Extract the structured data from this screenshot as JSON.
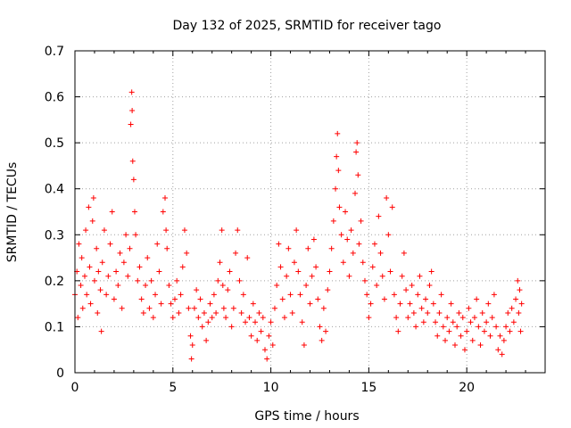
{
  "chart_data": {
    "type": "scatter",
    "title": "Day 132 of 2025, SRMTID for receiver tago",
    "xlabel": "GPS time / hours",
    "ylabel": "SRMTID / TECUs",
    "xlim": [
      0,
      24
    ],
    "ylim": [
      0,
      0.7
    ],
    "xticks": [
      0,
      5,
      10,
      15,
      20
    ],
    "xtick_labels": [
      "0",
      "5",
      "10",
      "15",
      "20"
    ],
    "yticks": [
      0,
      0.1,
      0.2,
      0.3,
      0.4,
      0.5,
      0.6,
      0.7
    ],
    "ytick_labels": [
      "0",
      "0.1",
      "0.2",
      "0.3",
      "0.4",
      "0.5",
      "0.6",
      "0.7"
    ],
    "grid": true,
    "marker": "+",
    "color": "#ff0000",
    "series": [
      {
        "name": "SRMTID",
        "points": [
          [
            0.0,
            0.17
          ],
          [
            0.1,
            0.22
          ],
          [
            0.15,
            0.12
          ],
          [
            0.2,
            0.28
          ],
          [
            0.3,
            0.19
          ],
          [
            0.35,
            0.25
          ],
          [
            0.4,
            0.14
          ],
          [
            0.5,
            0.21
          ],
          [
            0.55,
            0.31
          ],
          [
            0.6,
            0.17
          ],
          [
            0.7,
            0.36
          ],
          [
            0.75,
            0.23
          ],
          [
            0.8,
            0.15
          ],
          [
            0.9,
            0.33
          ],
          [
            0.95,
            0.38
          ],
          [
            1.0,
            0.2
          ],
          [
            1.1,
            0.27
          ],
          [
            1.15,
            0.13
          ],
          [
            1.2,
            0.22
          ],
          [
            1.3,
            0.18
          ],
          [
            1.35,
            0.09
          ],
          [
            1.4,
            0.24
          ],
          [
            1.5,
            0.31
          ],
          [
            1.6,
            0.17
          ],
          [
            1.7,
            0.21
          ],
          [
            1.8,
            0.28
          ],
          [
            1.9,
            0.35
          ],
          [
            2.0,
            0.16
          ],
          [
            2.1,
            0.22
          ],
          [
            2.2,
            0.19
          ],
          [
            2.3,
            0.26
          ],
          [
            2.4,
            0.14
          ],
          [
            2.5,
            0.24
          ],
          [
            2.6,
            0.3
          ],
          [
            2.7,
            0.21
          ],
          [
            2.8,
            0.27
          ],
          [
            2.85,
            0.54
          ],
          [
            2.9,
            0.61
          ],
          [
            2.92,
            0.57
          ],
          [
            2.95,
            0.46
          ],
          [
            3.0,
            0.42
          ],
          [
            3.05,
            0.35
          ],
          [
            3.1,
            0.3
          ],
          [
            3.2,
            0.2
          ],
          [
            3.3,
            0.23
          ],
          [
            3.4,
            0.16
          ],
          [
            3.5,
            0.13
          ],
          [
            3.6,
            0.19
          ],
          [
            3.7,
            0.25
          ],
          [
            3.8,
            0.14
          ],
          [
            3.9,
            0.2
          ],
          [
            4.0,
            0.12
          ],
          [
            4.1,
            0.17
          ],
          [
            4.2,
            0.28
          ],
          [
            4.3,
            0.22
          ],
          [
            4.4,
            0.15
          ],
          [
            4.5,
            0.35
          ],
          [
            4.6,
            0.38
          ],
          [
            4.65,
            0.31
          ],
          [
            4.7,
            0.27
          ],
          [
            4.8,
            0.19
          ],
          [
            4.9,
            0.15
          ],
          [
            5.0,
            0.12
          ],
          [
            5.1,
            0.16
          ],
          [
            5.2,
            0.2
          ],
          [
            5.3,
            0.13
          ],
          [
            5.4,
            0.17
          ],
          [
            5.5,
            0.23
          ],
          [
            5.6,
            0.31
          ],
          [
            5.7,
            0.26
          ],
          [
            5.8,
            0.14
          ],
          [
            5.9,
            0.08
          ],
          [
            5.95,
            0.03
          ],
          [
            6.0,
            0.06
          ],
          [
            6.1,
            0.14
          ],
          [
            6.2,
            0.18
          ],
          [
            6.3,
            0.12
          ],
          [
            6.4,
            0.16
          ],
          [
            6.5,
            0.1
          ],
          [
            6.6,
            0.13
          ],
          [
            6.7,
            0.07
          ],
          [
            6.8,
            0.11
          ],
          [
            6.9,
            0.15
          ],
          [
            7.0,
            0.12
          ],
          [
            7.1,
            0.17
          ],
          [
            7.2,
            0.13
          ],
          [
            7.3,
            0.2
          ],
          [
            7.4,
            0.24
          ],
          [
            7.5,
            0.31
          ],
          [
            7.55,
            0.19
          ],
          [
            7.6,
            0.14
          ],
          [
            7.7,
            0.12
          ],
          [
            7.8,
            0.18
          ],
          [
            7.9,
            0.22
          ],
          [
            8.0,
            0.1
          ],
          [
            8.1,
            0.14
          ],
          [
            8.2,
            0.26
          ],
          [
            8.3,
            0.31
          ],
          [
            8.4,
            0.2
          ],
          [
            8.5,
            0.13
          ],
          [
            8.6,
            0.17
          ],
          [
            8.7,
            0.11
          ],
          [
            8.8,
            0.25
          ],
          [
            8.9,
            0.12
          ],
          [
            9.0,
            0.08
          ],
          [
            9.1,
            0.15
          ],
          [
            9.2,
            0.11
          ],
          [
            9.3,
            0.07
          ],
          [
            9.4,
            0.13
          ],
          [
            9.5,
            0.09
          ],
          [
            9.6,
            0.12
          ],
          [
            9.7,
            0.05
          ],
          [
            9.8,
            0.03
          ],
          [
            9.9,
            0.08
          ],
          [
            10.0,
            0.11
          ],
          [
            10.1,
            0.06
          ],
          [
            10.2,
            0.14
          ],
          [
            10.3,
            0.19
          ],
          [
            10.4,
            0.28
          ],
          [
            10.5,
            0.23
          ],
          [
            10.6,
            0.16
          ],
          [
            10.7,
            0.12
          ],
          [
            10.8,
            0.21
          ],
          [
            10.9,
            0.27
          ],
          [
            11.0,
            0.17
          ],
          [
            11.1,
            0.13
          ],
          [
            11.2,
            0.24
          ],
          [
            11.3,
            0.31
          ],
          [
            11.4,
            0.22
          ],
          [
            11.5,
            0.17
          ],
          [
            11.6,
            0.11
          ],
          [
            11.7,
            0.06
          ],
          [
            11.8,
            0.19
          ],
          [
            11.9,
            0.27
          ],
          [
            12.0,
            0.15
          ],
          [
            12.1,
            0.21
          ],
          [
            12.2,
            0.29
          ],
          [
            12.3,
            0.23
          ],
          [
            12.4,
            0.16
          ],
          [
            12.5,
            0.1
          ],
          [
            12.6,
            0.07
          ],
          [
            12.7,
            0.14
          ],
          [
            12.8,
            0.09
          ],
          [
            12.9,
            0.18
          ],
          [
            13.0,
            0.22
          ],
          [
            13.1,
            0.27
          ],
          [
            13.2,
            0.33
          ],
          [
            13.3,
            0.4
          ],
          [
            13.35,
            0.47
          ],
          [
            13.4,
            0.52
          ],
          [
            13.45,
            0.44
          ],
          [
            13.5,
            0.36
          ],
          [
            13.6,
            0.3
          ],
          [
            13.7,
            0.24
          ],
          [
            13.8,
            0.35
          ],
          [
            13.9,
            0.29
          ],
          [
            14.0,
            0.21
          ],
          [
            14.1,
            0.31
          ],
          [
            14.2,
            0.26
          ],
          [
            14.3,
            0.39
          ],
          [
            14.35,
            0.48
          ],
          [
            14.4,
            0.5
          ],
          [
            14.45,
            0.43
          ],
          [
            14.5,
            0.28
          ],
          [
            14.6,
            0.33
          ],
          [
            14.7,
            0.24
          ],
          [
            14.8,
            0.2
          ],
          [
            14.9,
            0.17
          ],
          [
            15.0,
            0.12
          ],
          [
            15.1,
            0.15
          ],
          [
            15.2,
            0.23
          ],
          [
            15.3,
            0.28
          ],
          [
            15.4,
            0.19
          ],
          [
            15.5,
            0.34
          ],
          [
            15.6,
            0.26
          ],
          [
            15.7,
            0.21
          ],
          [
            15.8,
            0.16
          ],
          [
            15.9,
            0.38
          ],
          [
            16.0,
            0.3
          ],
          [
            16.1,
            0.22
          ],
          [
            16.2,
            0.36
          ],
          [
            16.3,
            0.17
          ],
          [
            16.4,
            0.12
          ],
          [
            16.5,
            0.09
          ],
          [
            16.6,
            0.15
          ],
          [
            16.7,
            0.21
          ],
          [
            16.8,
            0.26
          ],
          [
            16.9,
            0.18
          ],
          [
            17.0,
            0.12
          ],
          [
            17.1,
            0.15
          ],
          [
            17.2,
            0.19
          ],
          [
            17.3,
            0.13
          ],
          [
            17.4,
            0.1
          ],
          [
            17.5,
            0.17
          ],
          [
            17.6,
            0.21
          ],
          [
            17.7,
            0.14
          ],
          [
            17.8,
            0.11
          ],
          [
            17.9,
            0.16
          ],
          [
            18.0,
            0.13
          ],
          [
            18.1,
            0.19
          ],
          [
            18.2,
            0.22
          ],
          [
            18.3,
            0.15
          ],
          [
            18.4,
            0.11
          ],
          [
            18.5,
            0.08
          ],
          [
            18.6,
            0.13
          ],
          [
            18.7,
            0.17
          ],
          [
            18.8,
            0.1
          ],
          [
            18.9,
            0.07
          ],
          [
            19.0,
            0.12
          ],
          [
            19.1,
            0.09
          ],
          [
            19.2,
            0.15
          ],
          [
            19.3,
            0.11
          ],
          [
            19.4,
            0.06
          ],
          [
            19.5,
            0.1
          ],
          [
            19.6,
            0.13
          ],
          [
            19.7,
            0.08
          ],
          [
            19.8,
            0.12
          ],
          [
            19.9,
            0.05
          ],
          [
            20.0,
            0.09
          ],
          [
            20.1,
            0.14
          ],
          [
            20.2,
            0.11
          ],
          [
            20.3,
            0.07
          ],
          [
            20.4,
            0.12
          ],
          [
            20.5,
            0.16
          ],
          [
            20.6,
            0.1
          ],
          [
            20.7,
            0.06
          ],
          [
            20.8,
            0.13
          ],
          [
            20.9,
            0.09
          ],
          [
            21.0,
            0.11
          ],
          [
            21.1,
            0.15
          ],
          [
            21.2,
            0.08
          ],
          [
            21.3,
            0.12
          ],
          [
            21.4,
            0.17
          ],
          [
            21.5,
            0.1
          ],
          [
            21.6,
            0.05
          ],
          [
            21.7,
            0.08
          ],
          [
            21.8,
            0.04
          ],
          [
            21.9,
            0.07
          ],
          [
            22.0,
            0.1
          ],
          [
            22.1,
            0.13
          ],
          [
            22.2,
            0.09
          ],
          [
            22.3,
            0.14
          ],
          [
            22.4,
            0.11
          ],
          [
            22.5,
            0.16
          ],
          [
            22.6,
            0.2
          ],
          [
            22.65,
            0.13
          ],
          [
            22.7,
            0.18
          ],
          [
            22.75,
            0.09
          ],
          [
            22.8,
            0.15
          ]
        ]
      }
    ]
  }
}
